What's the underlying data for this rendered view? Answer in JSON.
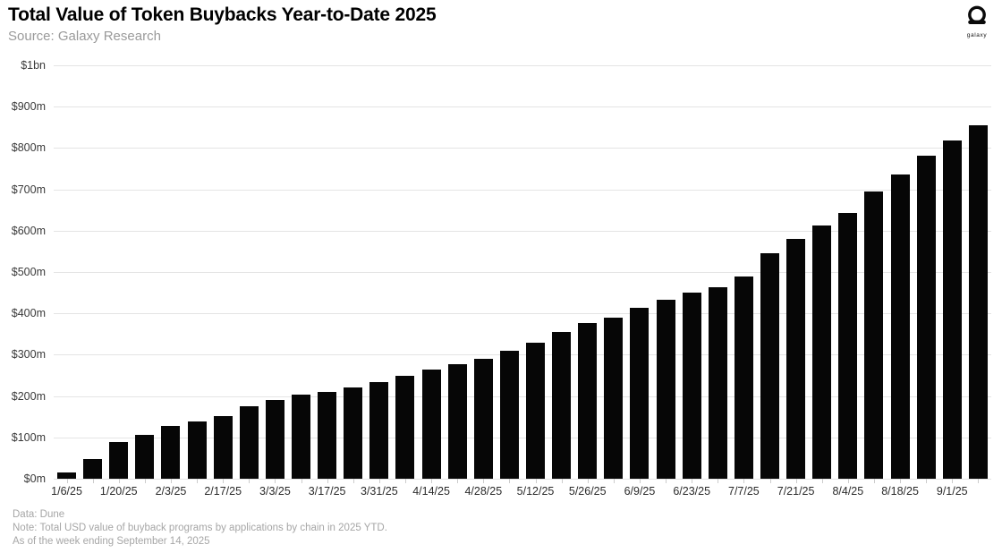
{
  "header": {
    "title": "Total Value of Token Buybacks Year-to-Date 2025",
    "source": "Source: Galaxy Research"
  },
  "logo": {
    "label": "galaxy"
  },
  "chart_data": {
    "type": "bar",
    "title": "Total Value of Token Buybacks Year-to-Date 2025",
    "ylabel": "",
    "xlabel": "",
    "ylim": [
      0,
      1000
    ],
    "grid": true,
    "bar_color": "#060606",
    "values_unit": "$m",
    "values": [
      15,
      47,
      88,
      106,
      127,
      139,
      152,
      175,
      190,
      203,
      210,
      220,
      233,
      250,
      265,
      278,
      290,
      310,
      330,
      356,
      376,
      390,
      413,
      434,
      450,
      464,
      489,
      546,
      581,
      613,
      642,
      694,
      737,
      782,
      819,
      856
    ],
    "x_tick_labels": [
      {
        "index": 0,
        "label": "1/6/25"
      },
      {
        "index": 2,
        "label": "1/20/25"
      },
      {
        "index": 4,
        "label": "2/3/25"
      },
      {
        "index": 6,
        "label": "2/17/25"
      },
      {
        "index": 8,
        "label": "3/3/25"
      },
      {
        "index": 10,
        "label": "3/17/25"
      },
      {
        "index": 12,
        "label": "3/31/25"
      },
      {
        "index": 14,
        "label": "4/14/25"
      },
      {
        "index": 16,
        "label": "4/28/25"
      },
      {
        "index": 18,
        "label": "5/12/25"
      },
      {
        "index": 20,
        "label": "5/26/25"
      },
      {
        "index": 22,
        "label": "6/9/25"
      },
      {
        "index": 24,
        "label": "6/23/25"
      },
      {
        "index": 26,
        "label": "7/7/25"
      },
      {
        "index": 28,
        "label": "7/21/25"
      },
      {
        "index": 30,
        "label": "8/4/25"
      },
      {
        "index": 32,
        "label": "8/18/25"
      },
      {
        "index": 34,
        "label": "9/1/25"
      }
    ],
    "y_ticks": [
      {
        "value": 0,
        "label": "$0m"
      },
      {
        "value": 100,
        "label": "$100m"
      },
      {
        "value": 200,
        "label": "$200m"
      },
      {
        "value": 300,
        "label": "$300m"
      },
      {
        "value": 400,
        "label": "$400m"
      },
      {
        "value": 500,
        "label": "$500m"
      },
      {
        "value": 600,
        "label": "$600m"
      },
      {
        "value": 700,
        "label": "$700m"
      },
      {
        "value": 800,
        "label": "$800m"
      },
      {
        "value": 900,
        "label": "$900m"
      },
      {
        "value": 1000,
        "label": "$1bn"
      }
    ],
    "legend": null
  },
  "footer": {
    "line1": "Data: Dune",
    "line2": "Note: Total USD value of buyback programs by applications by chain in 2025 YTD.",
    "line3": "As of the week ending September 14, 2025"
  }
}
